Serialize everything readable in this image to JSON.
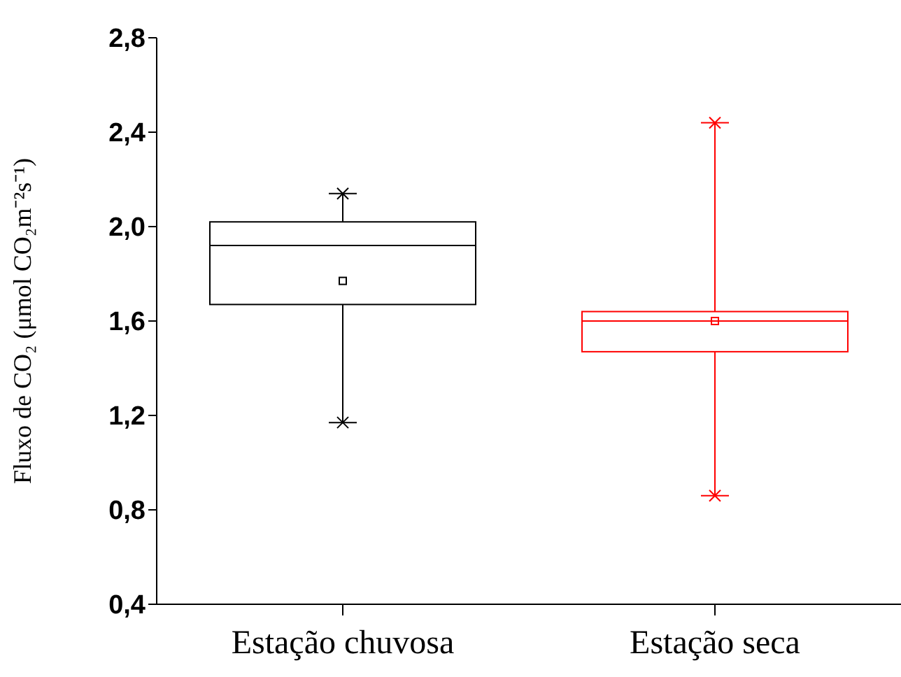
{
  "chart_data": {
    "type": "box",
    "ylabel": "Fluxo de CO₂ (μmol CO₂m⁻²s⁻¹)",
    "categories": [
      "Estação chuvosa",
      "Estação seca"
    ],
    "colors": [
      "#000000",
      "#ff0000"
    ],
    "boxes": [
      {
        "low": 1.17,
        "q1": 1.67,
        "median": 1.92,
        "q3": 2.02,
        "high": 2.14,
        "mean": 1.77,
        "outliers": [
          1.17,
          2.14
        ]
      },
      {
        "low": 0.86,
        "q1": 1.47,
        "median": 1.6,
        "q3": 1.64,
        "high": 2.44,
        "mean": 1.6,
        "outliers": [
          0.86,
          2.44
        ]
      }
    ],
    "marker": "cross",
    "grid": false,
    "ylim": [
      0.4,
      2.8
    ],
    "yticks": [
      {
        "value": 0.4,
        "label": "0,4"
      },
      {
        "value": 0.8,
        "label": "0,8"
      },
      {
        "value": 1.2,
        "label": "1,2"
      },
      {
        "value": 1.6,
        "label": "1,6"
      },
      {
        "value": 2.0,
        "label": "2,0"
      },
      {
        "value": 2.4,
        "label": "2,4"
      },
      {
        "value": 2.8,
        "label": "2,8"
      }
    ]
  }
}
